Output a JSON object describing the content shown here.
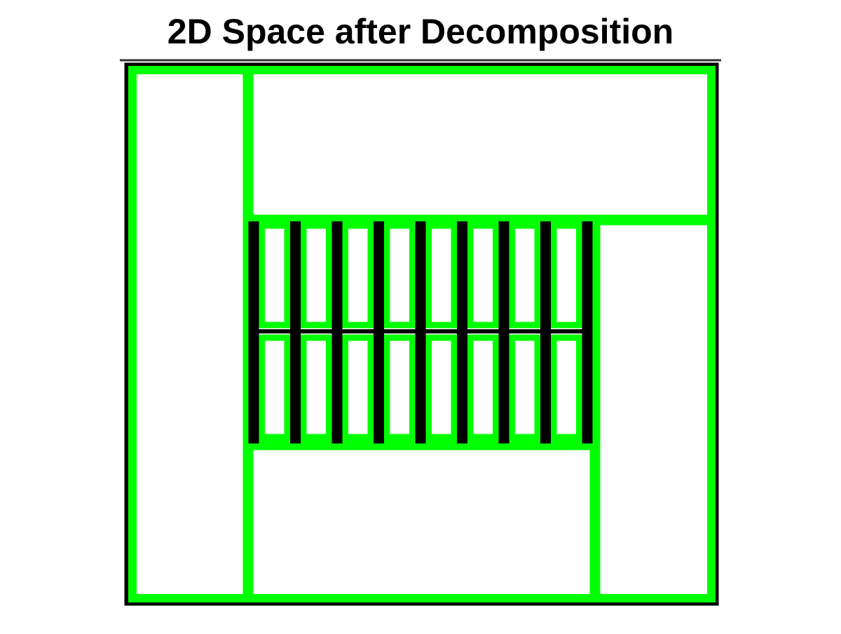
{
  "title": "2D Space after Decomposition",
  "colors": {
    "background": "#ffffff",
    "outer_boundary": "#000000",
    "cell_boundary": "#00ff00",
    "obstacle": "#000000"
  },
  "diagram": {
    "obstacle_bar_count": 9,
    "slot_rows": 2,
    "slots_per_row": 8
  }
}
